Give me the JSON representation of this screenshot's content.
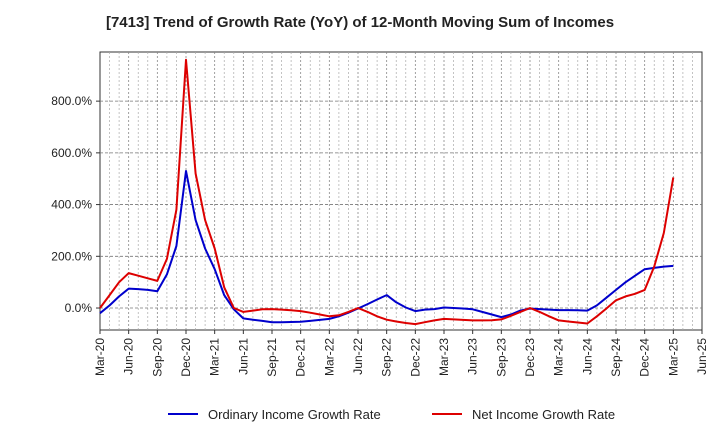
{
  "chart_data": {
    "type": "line",
    "title": "[7413]  Trend of Growth Rate (YoY) of 12-Month Moving Sum of Incomes",
    "xlabel": "",
    "ylabel": "",
    "x_tick_labels": [
      "Mar-20",
      "Jun-20",
      "Sep-20",
      "Dec-20",
      "Mar-21",
      "Jun-21",
      "Sep-21",
      "Dec-21",
      "Mar-22",
      "Jun-22",
      "Sep-22",
      "Dec-22",
      "Mar-23",
      "Jun-23",
      "Sep-23",
      "Dec-23",
      "Mar-24",
      "Jun-24",
      "Sep-24",
      "Dec-24",
      "Mar-25",
      "Jun-25"
    ],
    "y_tick_labels": [
      "0.0%",
      "200.0%",
      "400.0%",
      "600.0%",
      "800.0%"
    ],
    "y_ticks": [
      0,
      200,
      400,
      600,
      800
    ],
    "ylim": [
      -85,
      990
    ],
    "grid": true,
    "legend_position": "bottom",
    "series": [
      {
        "name": "Ordinary Income Growth Rate",
        "color": "#0000cc",
        "x": [
          "Mar-20",
          "Apr-20",
          "May-20",
          "Jun-20",
          "Jul-20",
          "Aug-20",
          "Sep-20",
          "Oct-20",
          "Nov-20",
          "Dec-20",
          "Jan-21",
          "Feb-21",
          "Mar-21",
          "Apr-21",
          "May-21",
          "Jun-21",
          "Jul-21",
          "Aug-21",
          "Sep-21",
          "Oct-21",
          "Nov-21",
          "Dec-21",
          "Jan-22",
          "Feb-22",
          "Mar-22",
          "Apr-22",
          "May-22",
          "Jun-22",
          "Jul-22",
          "Aug-22",
          "Sep-22",
          "Oct-22",
          "Nov-22",
          "Dec-22",
          "Jan-23",
          "Feb-23",
          "Mar-23",
          "Apr-23",
          "May-23",
          "Jun-23",
          "Jul-23",
          "Aug-23",
          "Sep-23",
          "Oct-23",
          "Nov-23",
          "Dec-23",
          "Jan-24",
          "Feb-24",
          "Mar-24",
          "Apr-24",
          "May-24",
          "Jun-24",
          "Jul-24",
          "Aug-24",
          "Sep-24",
          "Oct-24",
          "Nov-24",
          "Dec-24",
          "Jan-25",
          "Feb-25",
          "Mar-25"
        ],
        "values": [
          -20,
          10,
          45,
          75,
          73,
          70,
          65,
          130,
          240,
          530,
          340,
          230,
          150,
          50,
          -5,
          -40,
          -45,
          -50,
          -55,
          -55,
          -54,
          -53,
          -50,
          -46,
          -42,
          -32,
          -18,
          -2,
          15,
          33,
          50,
          22,
          2,
          -12,
          -6,
          -4,
          2,
          0,
          -2,
          -5,
          -15,
          -25,
          -35,
          -25,
          -10,
          -2,
          -4,
          -6,
          -8,
          -8,
          -9,
          -10,
          10,
          40,
          70,
          100,
          125,
          150,
          155,
          160,
          163
        ]
      },
      {
        "name": "Net Income Growth Rate",
        "color": "#dd0000",
        "x": [
          "Mar-20",
          "Apr-20",
          "May-20",
          "Jun-20",
          "Jul-20",
          "Aug-20",
          "Sep-20",
          "Oct-20",
          "Nov-20",
          "Dec-20",
          "Jan-21",
          "Feb-21",
          "Mar-21",
          "Apr-21",
          "May-21",
          "Jun-21",
          "Jul-21",
          "Aug-21",
          "Sep-21",
          "Oct-21",
          "Nov-21",
          "Dec-21",
          "Jan-22",
          "Feb-22",
          "Mar-22",
          "Apr-22",
          "May-22",
          "Jun-22",
          "Jul-22",
          "Aug-22",
          "Sep-22",
          "Oct-22",
          "Nov-22",
          "Dec-22",
          "Jan-23",
          "Feb-23",
          "Mar-23",
          "Apr-23",
          "May-23",
          "Jun-23",
          "Jul-23",
          "Aug-23",
          "Sep-23",
          "Oct-23",
          "Nov-23",
          "Dec-23",
          "Jan-24",
          "Feb-24",
          "Mar-24",
          "Apr-24",
          "May-24",
          "Jun-24",
          "Jul-24",
          "Aug-24",
          "Sep-24",
          "Oct-24",
          "Nov-24",
          "Dec-24",
          "Jan-25",
          "Feb-25",
          "Mar-25"
        ],
        "values": [
          0,
          50,
          100,
          135,
          125,
          115,
          105,
          190,
          380,
          960,
          520,
          340,
          230,
          80,
          0,
          -15,
          -10,
          -5,
          -4,
          -6,
          -9,
          -12,
          -18,
          -25,
          -32,
          -28,
          -15,
          0,
          -15,
          -32,
          -45,
          -52,
          -58,
          -62,
          -55,
          -48,
          -42,
          -44,
          -46,
          -48,
          -48,
          -47,
          -44,
          -30,
          -15,
          0,
          -15,
          -32,
          -48,
          -52,
          -56,
          -60,
          -32,
          -2,
          30,
          45,
          55,
          70,
          160,
          290,
          505
        ]
      }
    ]
  }
}
